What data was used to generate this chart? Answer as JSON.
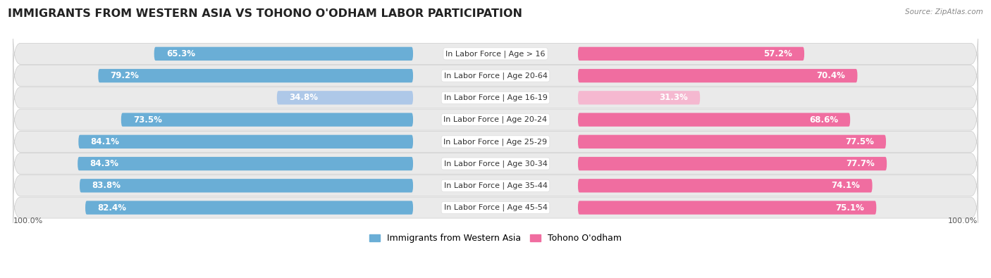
{
  "title": "IMMIGRANTS FROM WESTERN ASIA VS TOHONO O'ODHAM LABOR PARTICIPATION",
  "source": "Source: ZipAtlas.com",
  "categories": [
    "In Labor Force | Age > 16",
    "In Labor Force | Age 20-64",
    "In Labor Force | Age 16-19",
    "In Labor Force | Age 20-24",
    "In Labor Force | Age 25-29",
    "In Labor Force | Age 30-34",
    "In Labor Force | Age 35-44",
    "In Labor Force | Age 45-54"
  ],
  "left_values": [
    65.3,
    79.2,
    34.8,
    73.5,
    84.1,
    84.3,
    83.8,
    82.4
  ],
  "right_values": [
    57.2,
    70.4,
    31.3,
    68.6,
    77.5,
    77.7,
    74.1,
    75.1
  ],
  "left_color_full": "#6aaed6",
  "left_color_light": "#aec8e8",
  "right_color_full": "#f06da0",
  "right_color_light": "#f5b8d0",
  "row_bg_color": "#eaeaea",
  "left_legend_color": "#6aaed6",
  "right_legend_color": "#f06da0",
  "left_label": "Immigrants from Western Asia",
  "right_label": "Tohono O'odham",
  "max_val": 100.0,
  "title_fontsize": 11.5,
  "bar_fontsize": 8.5,
  "label_fontsize": 8,
  "legend_fontsize": 9,
  "axis_fontsize": 8,
  "light_rows": [
    2
  ]
}
